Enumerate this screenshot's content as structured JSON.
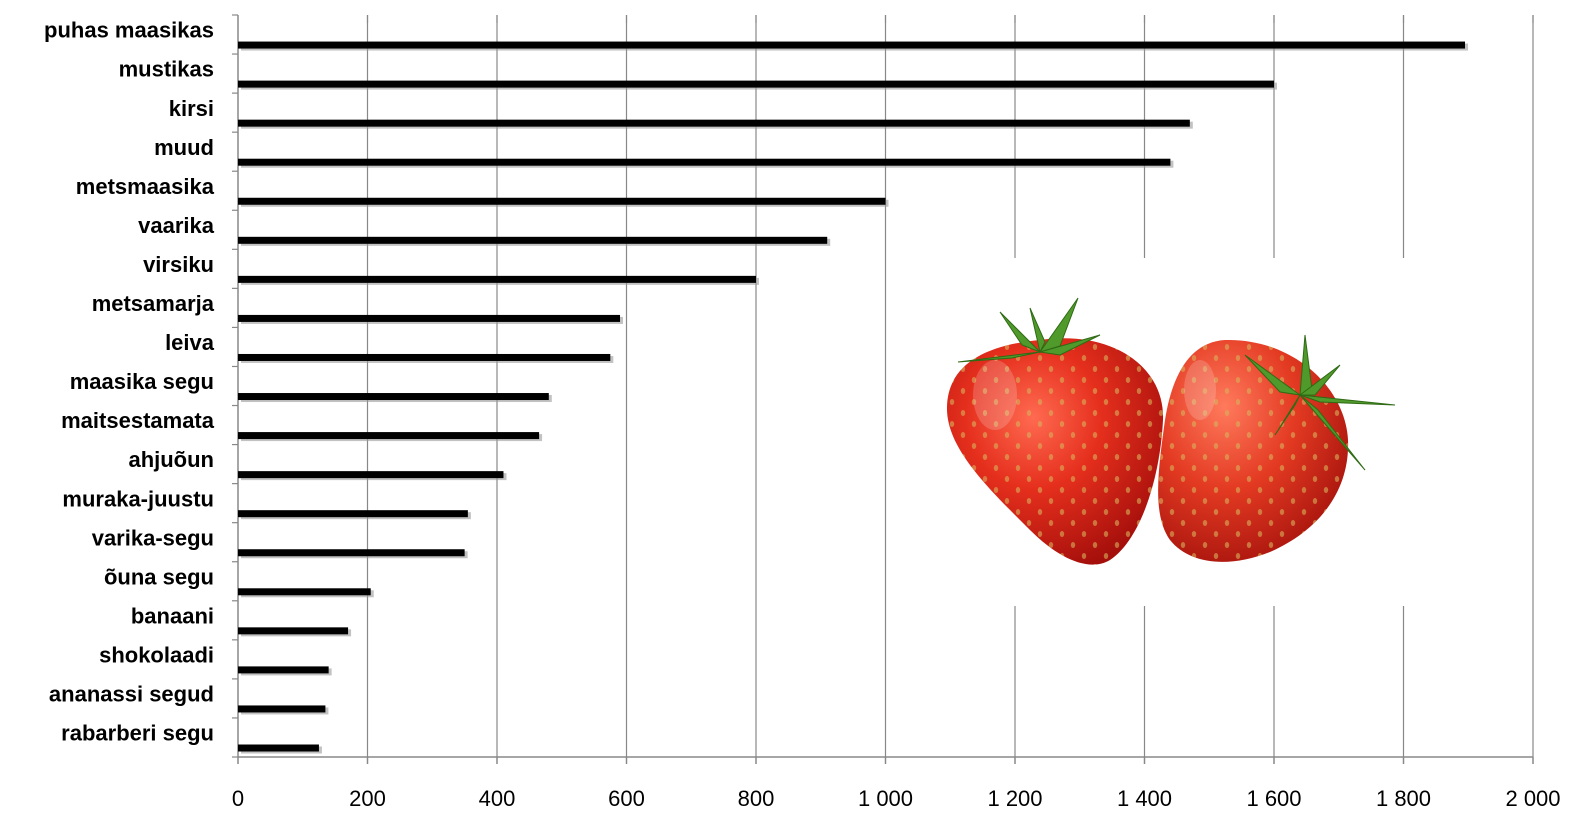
{
  "chart_data": {
    "type": "bar",
    "orientation": "horizontal",
    "categories": [
      "puhas maasikas",
      "mustikas",
      "kirsi",
      "muud",
      "metsmaasika",
      "vaarika",
      "virsiku",
      "metsamarja",
      "leiva",
      "maasika segu",
      "maitsestamata",
      "ahjuõun",
      "muraka-juustu",
      "varika-segu",
      "õuna segu",
      "banaani",
      "shokolaadi",
      "ananassi segud",
      "rabarberi segu"
    ],
    "values": [
      1895,
      1600,
      1470,
      1440,
      1000,
      910,
      800,
      590,
      575,
      480,
      465,
      410,
      355,
      350,
      205,
      170,
      140,
      135,
      125
    ],
    "xlim": [
      0,
      2000
    ],
    "ticks": [
      0,
      200,
      400,
      600,
      800,
      1000,
      1200,
      1400,
      1600,
      1800,
      2000
    ],
    "tick_labels": [
      "0",
      "200",
      "400",
      "600",
      "800",
      "1 000",
      "1 200",
      "1 400",
      "1 600",
      "1 800",
      "2 000"
    ],
    "title": "",
    "xlabel": "",
    "ylabel": "",
    "grid": true,
    "bar_color": "#000000",
    "grid_color": "#888888",
    "image": "strawberries-photo"
  }
}
